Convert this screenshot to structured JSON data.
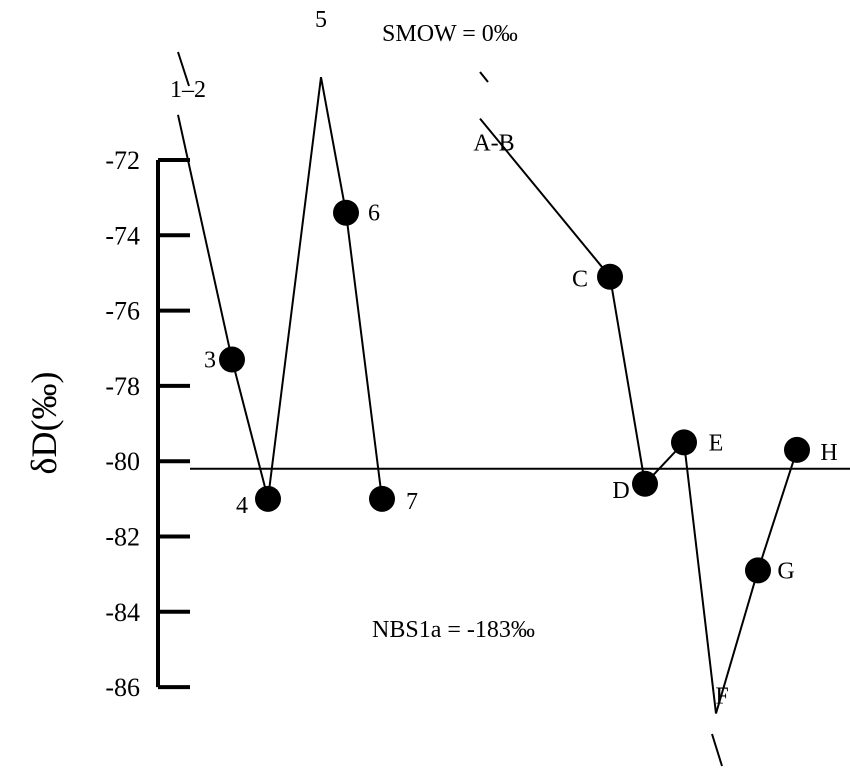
{
  "chart_data": {
    "type": "line",
    "ylabel": "δD(‰)",
    "ylim": [
      -86,
      -72
    ],
    "yticks": [
      -72,
      -74,
      -76,
      -78,
      -80,
      -82,
      -84,
      -86
    ],
    "tick_labels": [
      "-72",
      "-74",
      "-76",
      "-78",
      "-80",
      "-82",
      "-84",
      "-86"
    ],
    "reference_line": -80.2,
    "annotations": {
      "top": "SMOW = 0‰",
      "bottom": "NBS1a = -183‰"
    },
    "series": [
      {
        "points": [
          {
            "label": "1–2",
            "y": -70.8,
            "marker": false
          },
          {
            "label": "3",
            "y": -77.3,
            "marker": true
          },
          {
            "label": "4",
            "y": -81.0,
            "marker": true
          },
          {
            "label": "5",
            "y": -69.8,
            "marker": false
          },
          {
            "label": "6",
            "y": -73.4,
            "marker": true
          },
          {
            "label": "7",
            "y": -81.0,
            "marker": true
          }
        ]
      },
      {
        "points": [
          {
            "label": "A-B",
            "y": -70.9,
            "marker": false
          },
          {
            "label": "C",
            "y": -75.1,
            "marker": true
          },
          {
            "label": "D",
            "y": -80.6,
            "marker": true
          },
          {
            "label": "E",
            "y": -79.5,
            "marker": true
          },
          {
            "label": "F",
            "y": -86.7,
            "marker": false
          },
          {
            "label": "G",
            "y": -82.9,
            "marker": true
          },
          {
            "label": "H",
            "y": -79.7,
            "marker": true
          }
        ]
      }
    ]
  }
}
